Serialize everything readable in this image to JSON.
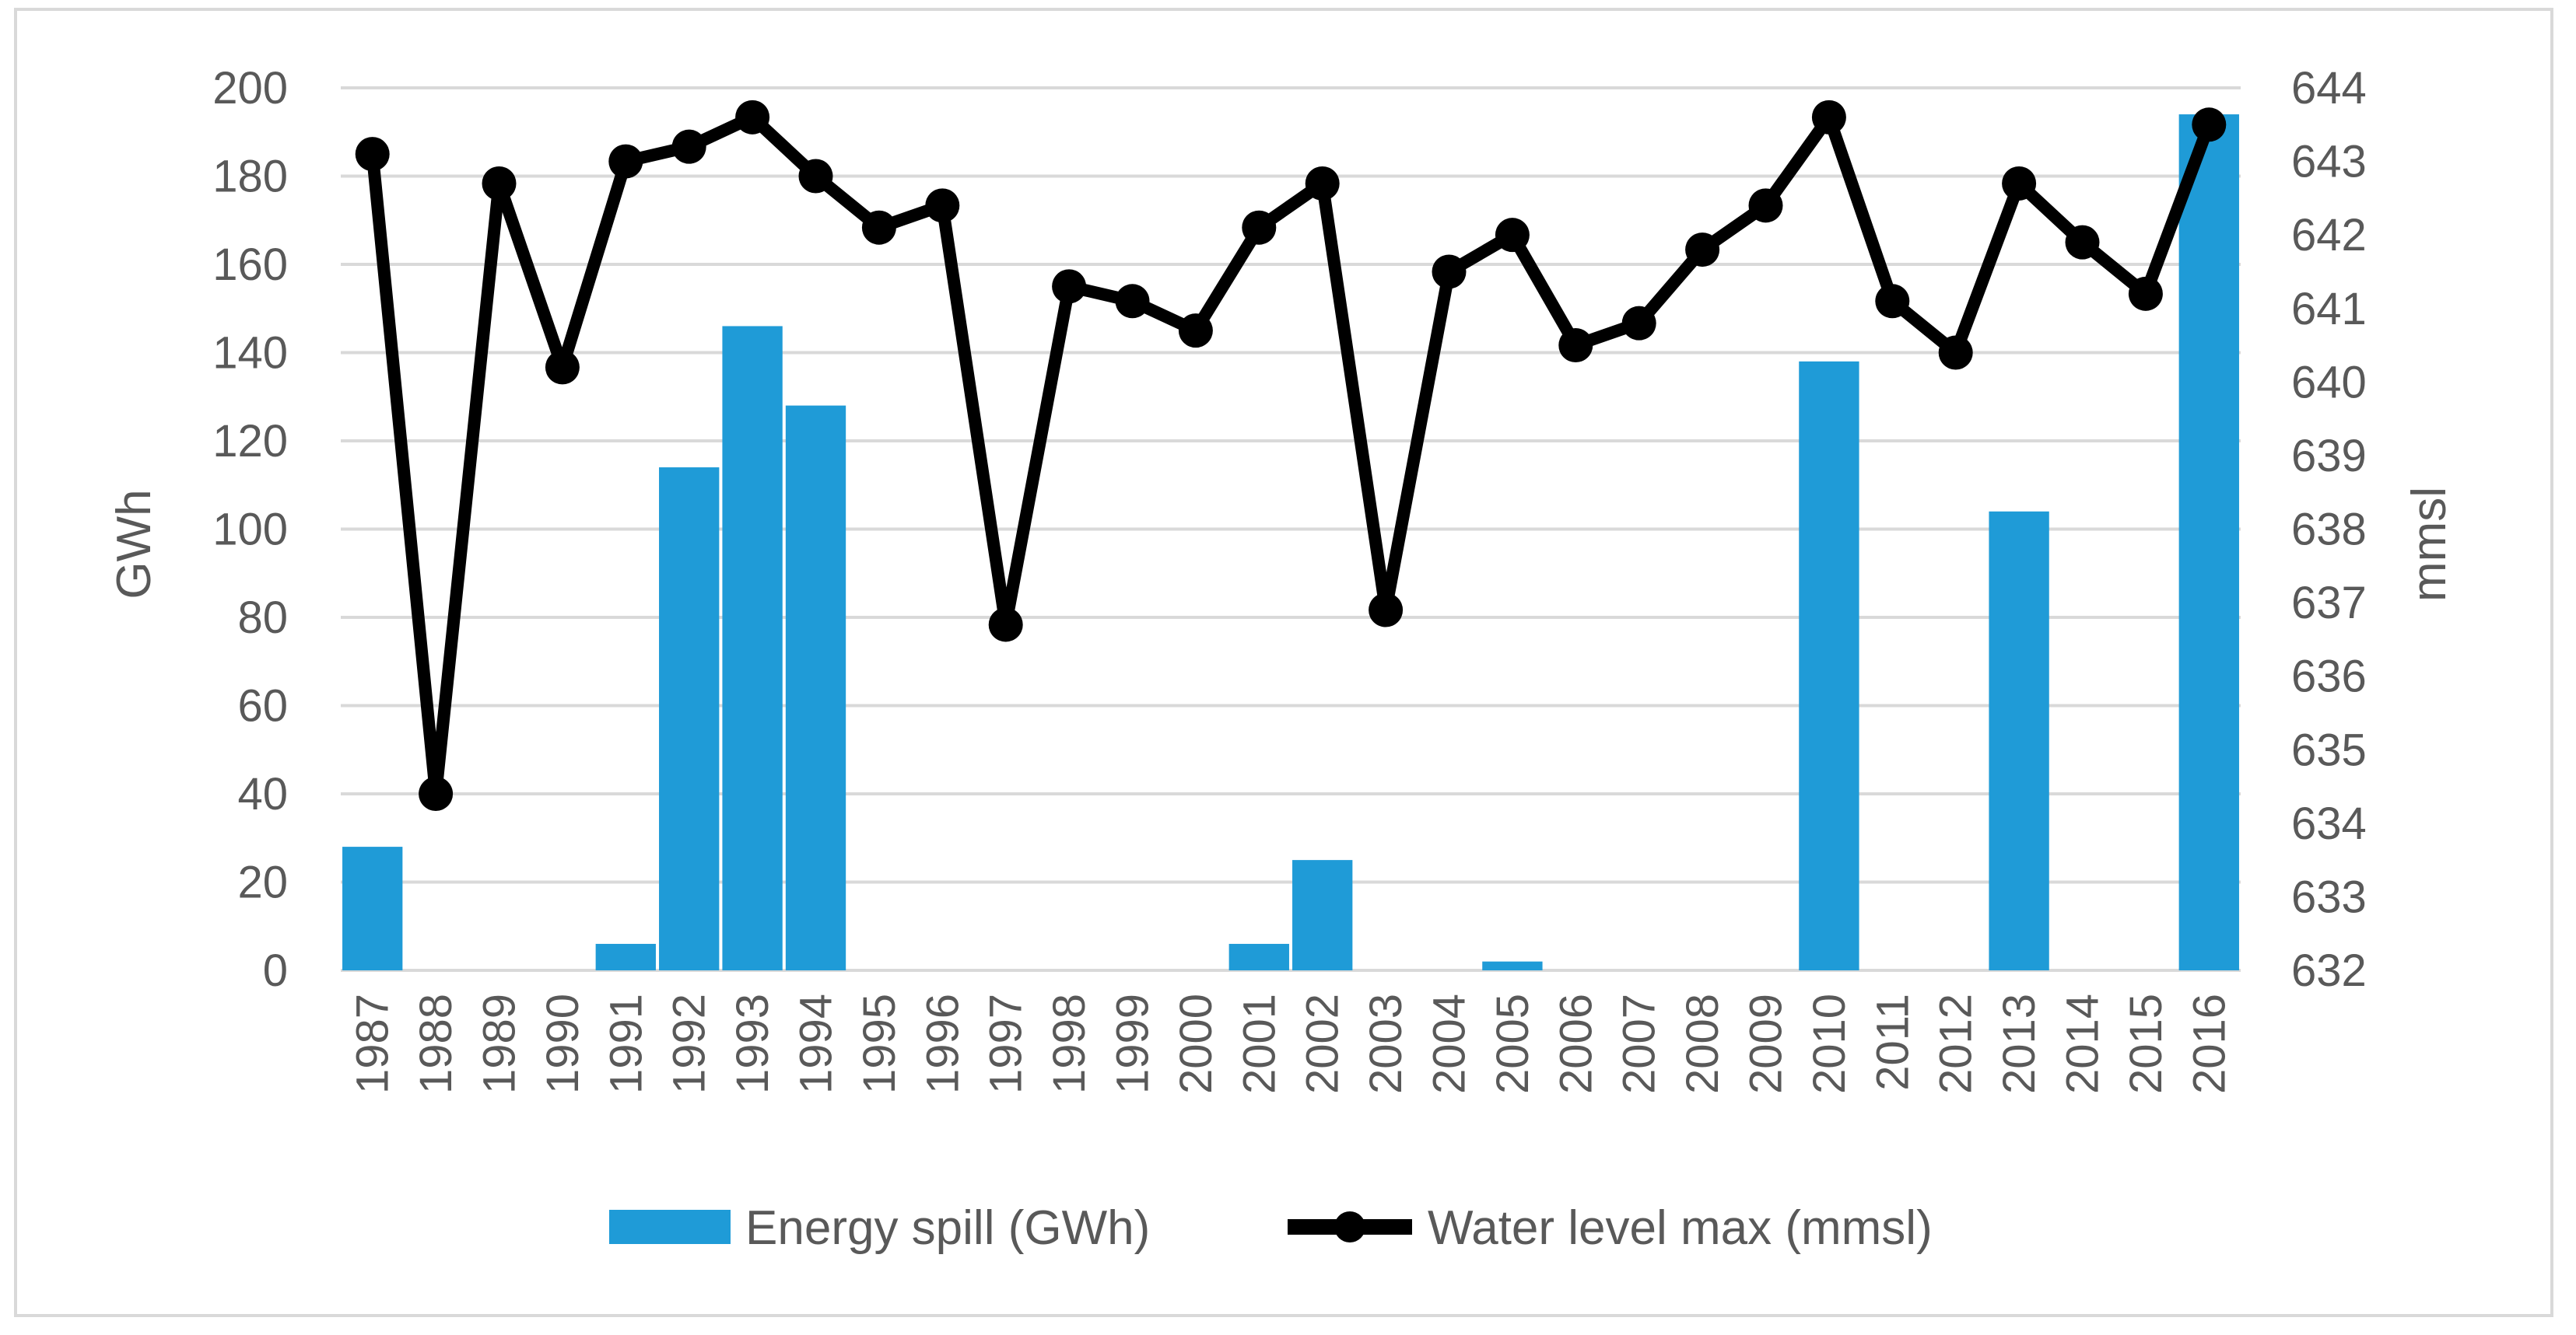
{
  "chart_data": {
    "type": "bar+line",
    "categories": [
      "1987",
      "1988",
      "1989",
      "1990",
      "1991",
      "1992",
      "1993",
      "1994",
      "1995",
      "1996",
      "1997",
      "1998",
      "1999",
      "2000",
      "2001",
      "2002",
      "2003",
      "2004",
      "2005",
      "2006",
      "2007",
      "2008",
      "2009",
      "2010",
      "2011",
      "2012",
      "2013",
      "2014",
      "2015",
      "2016"
    ],
    "series": [
      {
        "name": "Energy spill (GWh)",
        "type": "bar",
        "axis": "left",
        "color": "#1f9bd7",
        "values": [
          28,
          0,
          0,
          0,
          6,
          114,
          146,
          128,
          0,
          0,
          0,
          0,
          0,
          0,
          6,
          25,
          0,
          0,
          2,
          0,
          0,
          0,
          0,
          138,
          0,
          0,
          104,
          0,
          0,
          194
        ]
      },
      {
        "name": "Water level max (mmsl)",
        "type": "line",
        "axis": "right",
        "color": "#000000",
        "values": [
          643.1,
          634.4,
          642.7,
          640.2,
          643.0,
          643.2,
          643.6,
          642.8,
          642.1,
          642.4,
          636.7,
          641.3,
          641.1,
          640.7,
          642.1,
          642.7,
          636.9,
          641.5,
          642.0,
          640.5,
          640.8,
          641.8,
          642.4,
          643.6,
          641.1,
          640.4,
          642.7,
          641.9,
          641.2,
          643.5
        ]
      }
    ],
    "y_left": {
      "label": "GWh",
      "min": 0,
      "max": 200,
      "step": 20,
      "ticks": [
        "0",
        "20",
        "40",
        "60",
        "80",
        "100",
        "120",
        "140",
        "160",
        "180",
        "200"
      ]
    },
    "y_right": {
      "label": "mmsl",
      "min": 632,
      "max": 644,
      "step": 1,
      "ticks": [
        "632",
        "633",
        "634",
        "635",
        "636",
        "637",
        "638",
        "639",
        "640",
        "641",
        "642",
        "643",
        "644"
      ]
    },
    "grid": true,
    "legend": {
      "position": "bottom",
      "items": [
        "Energy spill (GWh)",
        "Water level max (mmsl)"
      ]
    }
  }
}
